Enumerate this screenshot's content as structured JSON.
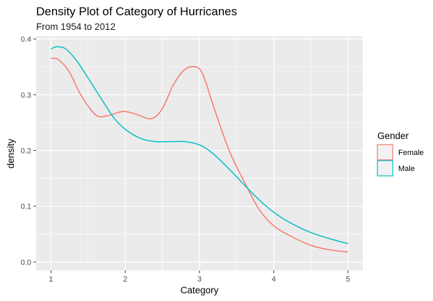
{
  "chart_data": {
    "type": "line",
    "title": "Density Plot of Category of Hurricanes",
    "subtitle": "From 1954 to 2012",
    "xlabel": "Category",
    "ylabel": "density",
    "xlim": [
      0.8,
      5.2
    ],
    "ylim": [
      -0.015,
      0.405
    ],
    "x_ticks": [
      1,
      2,
      3,
      4,
      5
    ],
    "y_ticks": [
      0.0,
      0.1,
      0.2,
      0.3,
      0.4
    ],
    "x_tick_labels": [
      "1",
      "2",
      "3",
      "4",
      "5"
    ],
    "y_tick_labels": [
      "0.0",
      "0.1",
      "0.2",
      "0.3",
      "0.4"
    ],
    "grid": true,
    "legend": {
      "title": "Gender",
      "position": "right"
    },
    "series": [
      {
        "name": "Female",
        "color": "#F8766D",
        "x": [
          1.0,
          1.1,
          1.25,
          1.4,
          1.6,
          1.75,
          1.9,
          2.0,
          2.15,
          2.35,
          2.5,
          2.65,
          2.8,
          2.95,
          3.05,
          3.2,
          3.4,
          3.6,
          3.8,
          4.0,
          4.25,
          4.5,
          4.75,
          5.0
        ],
        "y": [
          0.365,
          0.363,
          0.34,
          0.3,
          0.264,
          0.262,
          0.268,
          0.27,
          0.265,
          0.257,
          0.275,
          0.318,
          0.345,
          0.35,
          0.335,
          0.275,
          0.2,
          0.145,
          0.095,
          0.065,
          0.045,
          0.03,
          0.022,
          0.018
        ]
      },
      {
        "name": "Male",
        "color": "#00BFC4",
        "x": [
          1.0,
          1.08,
          1.2,
          1.35,
          1.5,
          1.7,
          1.85,
          2.0,
          2.2,
          2.4,
          2.6,
          2.8,
          3.0,
          3.15,
          3.3,
          3.5,
          3.7,
          3.9,
          4.1,
          4.3,
          4.5,
          4.75,
          5.0
        ],
        "y": [
          0.382,
          0.386,
          0.382,
          0.36,
          0.33,
          0.288,
          0.258,
          0.238,
          0.222,
          0.216,
          0.216,
          0.216,
          0.21,
          0.198,
          0.18,
          0.153,
          0.125,
          0.1,
          0.08,
          0.065,
          0.053,
          0.042,
          0.033
        ]
      }
    ]
  }
}
